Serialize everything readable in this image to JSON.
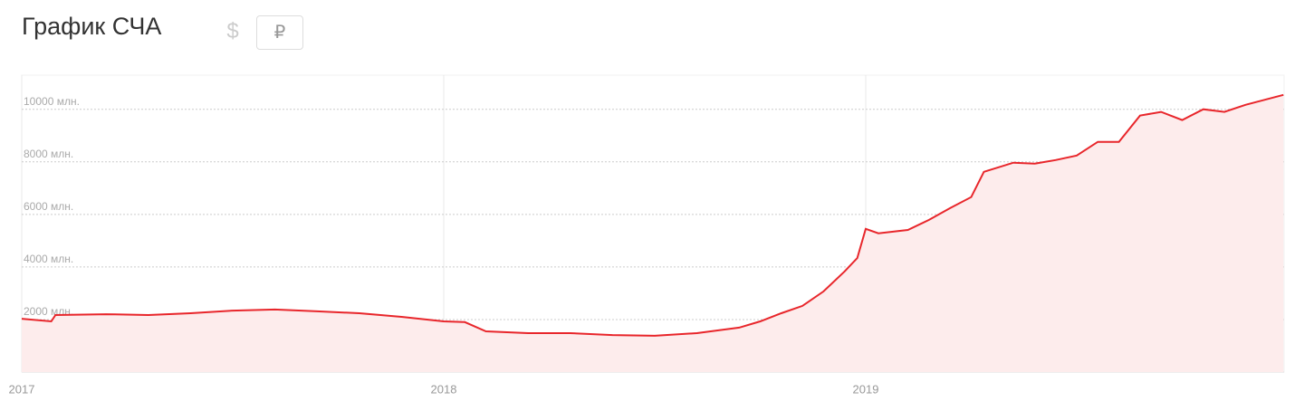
{
  "chart_data": {
    "type": "area",
    "title": "График СЧА",
    "x": [
      2017.0,
      2017.07,
      2017.08,
      2017.2,
      2017.3,
      2017.4,
      2017.5,
      2017.6,
      2017.7,
      2017.8,
      2017.9,
      2018.0,
      2018.05,
      2018.1,
      2018.2,
      2018.3,
      2018.4,
      2018.5,
      2018.6,
      2018.7,
      2018.75,
      2018.8,
      2018.85,
      2018.9,
      2018.95,
      2018.98,
      2019.0,
      2019.03,
      2019.1,
      2019.15,
      2019.2,
      2019.25,
      2019.28,
      2019.35,
      2019.4,
      2019.45,
      2019.5,
      2019.55,
      2019.6,
      2019.65,
      2019.7,
      2019.75,
      2019.8,
      2019.85,
      2019.9,
      2019.99
    ],
    "series": [
      {
        "color": "#e8262b",
        "fill": "#fdecec",
        "values": [
          2030,
          1930,
          2170,
          2200,
          2170,
          2240,
          2340,
          2380,
          2310,
          2240,
          2100,
          1930,
          1900,
          1550,
          1480,
          1480,
          1410,
          1380,
          1480,
          1690,
          1930,
          2240,
          2520,
          3070,
          3830,
          4340,
          5450,
          5280,
          5410,
          5790,
          6240,
          6660,
          7620,
          7970,
          7930,
          8070,
          8240,
          8760,
          8760,
          9760,
          9900,
          9590,
          10000,
          9900,
          10170,
          10550
        ]
      }
    ],
    "xlim": [
      2017,
      2020
    ],
    "xticks": [
      2017,
      2018,
      2019
    ],
    "ylim": [
      0,
      11300
    ],
    "yticks": [
      0,
      {
        "value": 2000,
        "label": "2000 млн."
      },
      {
        "value": 4000,
        "label": "4000 млн."
      },
      {
        "value": 6000,
        "label": "6000 млн."
      },
      {
        "value": 8000,
        "label": "8000 млн."
      },
      {
        "value": 10000,
        "label": "10000 млн."
      }
    ],
    "grid": true
  },
  "controls": {
    "currencies": [
      "$",
      "₽"
    ]
  }
}
